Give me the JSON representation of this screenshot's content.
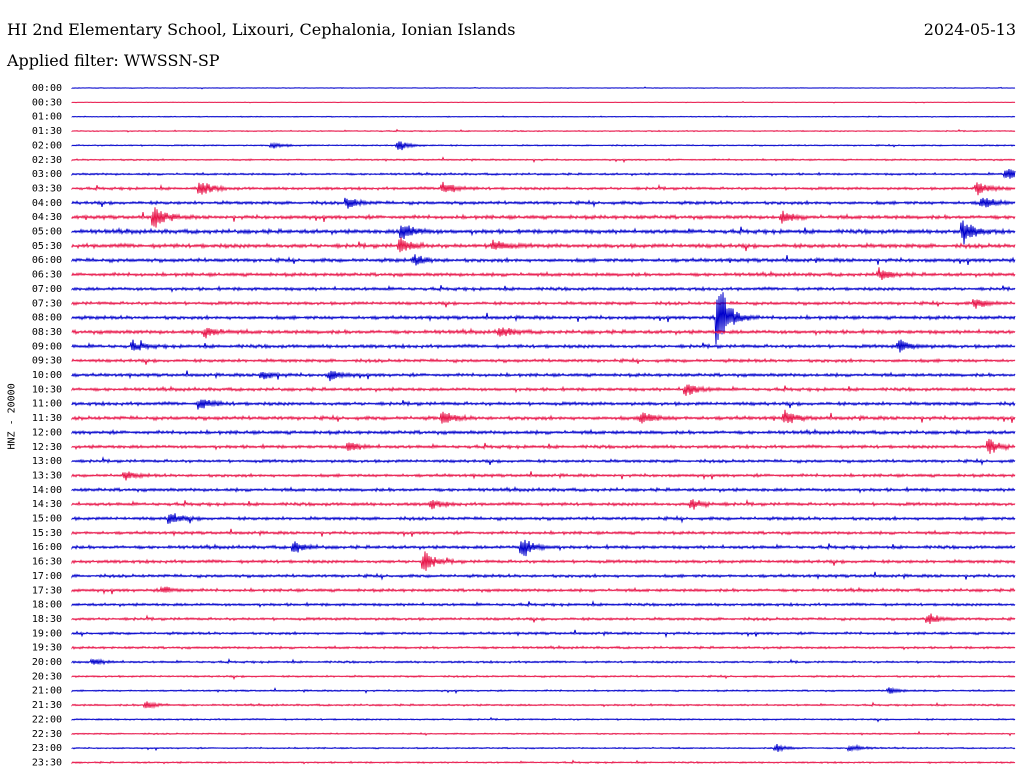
{
  "header": {
    "station": "HI 2nd Elementary School, Lixouri, Cephalonia, Ionian Islands",
    "date": "2024-05-13",
    "filter": "Applied filter: WWSSN-SP"
  },
  "chart_data": {
    "type": "line",
    "title": "HI 2nd Elementary School, Lixouri, Cephalonia, Ionian Islands",
    "ylabel": "HNZ - 20000",
    "xlabel": "",
    "rows": [
      "00:00",
      "00:30",
      "01:00",
      "01:30",
      "02:00",
      "02:30",
      "03:00",
      "03:30",
      "04:00",
      "04:30",
      "05:00",
      "05:30",
      "06:00",
      "06:30",
      "07:00",
      "07:30",
      "08:00",
      "08:30",
      "09:00",
      "09:30",
      "10:00",
      "10:30",
      "11:00",
      "11:30",
      "12:00",
      "12:30",
      "13:00",
      "13:30",
      "14:00",
      "14:30",
      "15:00",
      "15:30",
      "16:00",
      "16:30",
      "17:00",
      "17:30",
      "18:00",
      "18:30",
      "19:00",
      "19:30",
      "20:00",
      "20:30",
      "21:00",
      "21:30",
      "22:00",
      "22:30",
      "23:00",
      "23:30"
    ],
    "row_colors": [
      "#0000cc",
      "#e8164a"
    ],
    "noise_amplitude": [
      0.3,
      0.2,
      0.4,
      0.5,
      0.6,
      0.7,
      0.9,
      1.2,
      1.4,
      1.6,
      1.8,
      1.8,
      1.6,
      1.5,
      1.4,
      1.4,
      1.5,
      1.6,
      1.5,
      1.4,
      1.4,
      1.4,
      1.5,
      1.6,
      1.5,
      1.4,
      1.3,
      1.3,
      1.4,
      1.4,
      1.4,
      1.3,
      1.4,
      1.4,
      1.3,
      1.3,
      1.2,
      1.2,
      1.1,
      1.0,
      0.9,
      0.8,
      0.7,
      0.8,
      0.7,
      0.6,
      0.6,
      0.7
    ],
    "events": [
      {
        "row": 4,
        "x": 272,
        "amp": 3
      },
      {
        "row": 4,
        "x": 398,
        "amp": 5
      },
      {
        "row": 6,
        "x": 1006,
        "amp": 8
      },
      {
        "row": 7,
        "x": 200,
        "amp": 9
      },
      {
        "row": 7,
        "x": 443,
        "amp": 8
      },
      {
        "row": 7,
        "x": 977,
        "amp": 9
      },
      {
        "row": 8,
        "x": 347,
        "amp": 6
      },
      {
        "row": 8,
        "x": 982,
        "amp": 7
      },
      {
        "row": 9,
        "x": 154,
        "amp": 12
      },
      {
        "row": 9,
        "x": 782,
        "amp": 6
      },
      {
        "row": 10,
        "x": 402,
        "amp": 10
      },
      {
        "row": 10,
        "x": 963,
        "amp": 14
      },
      {
        "row": 11,
        "x": 400,
        "amp": 9
      },
      {
        "row": 11,
        "x": 493,
        "amp": 7
      },
      {
        "row": 12,
        "x": 415,
        "amp": 5
      },
      {
        "row": 13,
        "x": 879,
        "amp": 6
      },
      {
        "row": 15,
        "x": 975,
        "amp": 6
      },
      {
        "row": 16,
        "x": 718,
        "amp": 45
      },
      {
        "row": 17,
        "x": 206,
        "amp": 6
      },
      {
        "row": 17,
        "x": 500,
        "amp": 6
      },
      {
        "row": 18,
        "x": 133,
        "amp": 5
      },
      {
        "row": 18,
        "x": 899,
        "amp": 7
      },
      {
        "row": 20,
        "x": 262,
        "amp": 5
      },
      {
        "row": 20,
        "x": 330,
        "amp": 5
      },
      {
        "row": 21,
        "x": 686,
        "amp": 8
      },
      {
        "row": 22,
        "x": 200,
        "amp": 7
      },
      {
        "row": 23,
        "x": 443,
        "amp": 7
      },
      {
        "row": 23,
        "x": 642,
        "amp": 7
      },
      {
        "row": 23,
        "x": 785,
        "amp": 7
      },
      {
        "row": 25,
        "x": 348,
        "amp": 5
      },
      {
        "row": 25,
        "x": 989,
        "amp": 9
      },
      {
        "row": 27,
        "x": 125,
        "amp": 4
      },
      {
        "row": 29,
        "x": 431,
        "amp": 5
      },
      {
        "row": 29,
        "x": 692,
        "amp": 6
      },
      {
        "row": 30,
        "x": 170,
        "amp": 7
      },
      {
        "row": 32,
        "x": 294,
        "amp": 6
      },
      {
        "row": 32,
        "x": 522,
        "amp": 12
      },
      {
        "row": 33,
        "x": 424,
        "amp": 11
      },
      {
        "row": 35,
        "x": 163,
        "amp": 4
      },
      {
        "row": 37,
        "x": 928,
        "amp": 6
      },
      {
        "row": 40,
        "x": 93,
        "amp": 3
      },
      {
        "row": 42,
        "x": 889,
        "amp": 3
      },
      {
        "row": 43,
        "x": 146,
        "amp": 4
      },
      {
        "row": 46,
        "x": 776,
        "amp": 4
      },
      {
        "row": 46,
        "x": 850,
        "amp": 4
      }
    ]
  }
}
